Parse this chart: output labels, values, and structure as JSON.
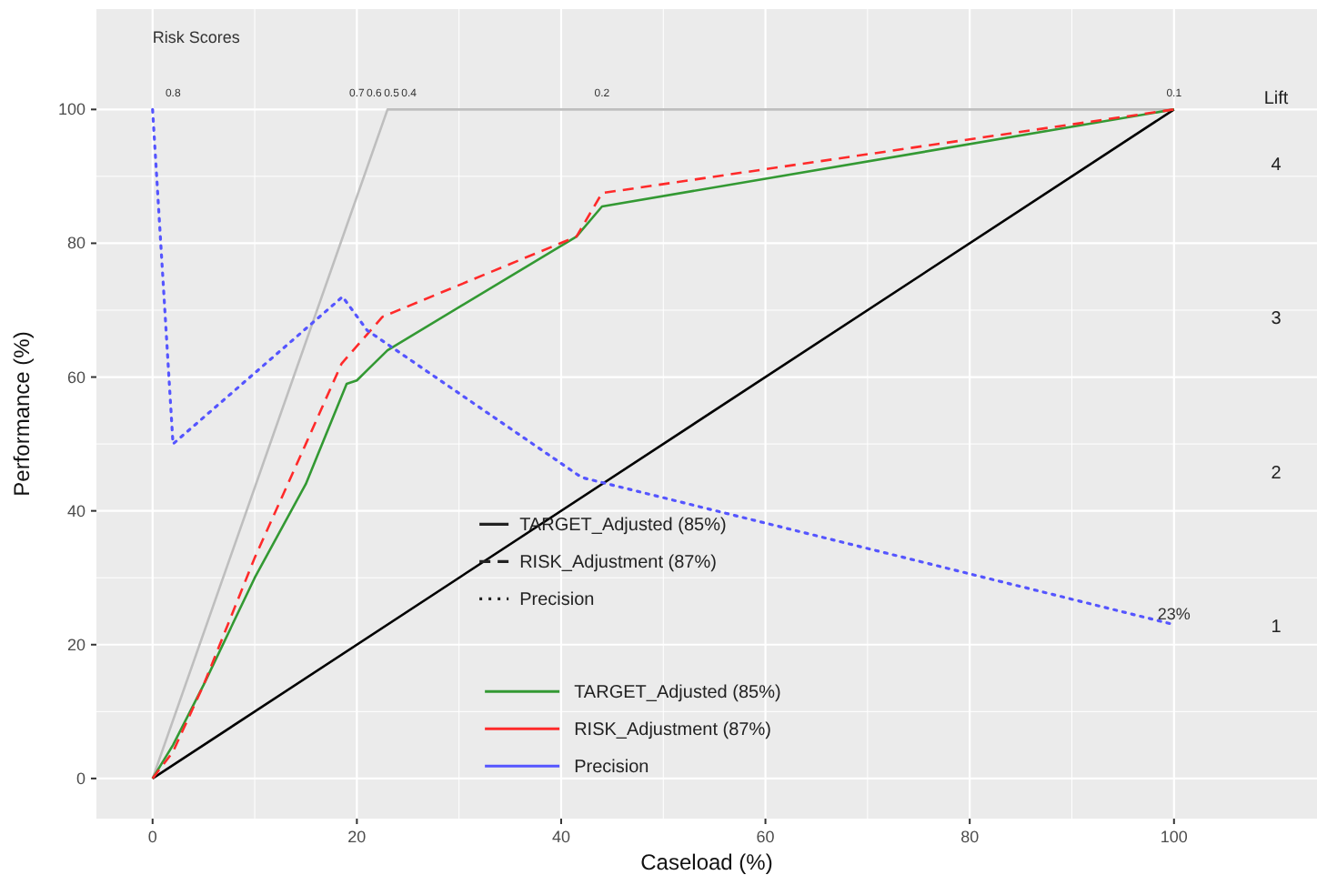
{
  "chart_data": {
    "type": "line",
    "xlabel": "Caseload (%)",
    "ylabel": "Performance (%)",
    "y2label": "Lift",
    "xlim": [
      -5.5,
      114
    ],
    "xticks": [
      0,
      20,
      40,
      60,
      80,
      100
    ],
    "ylim": [
      -6,
      115
    ],
    "yticks": [
      0,
      20,
      40,
      60,
      80,
      100
    ],
    "y2lim": [
      -0.26,
      5
    ],
    "y2ticks": [
      1,
      2,
      3,
      4
    ],
    "grid": true,
    "legend": "bottom",
    "series": [
      {
        "color": "#bebebe",
        "line_style": "solid",
        "x": [
          0,
          23,
          100
        ],
        "values": [
          0,
          100,
          100
        ]
      },
      {
        "color": "#000000",
        "line_style": "solid",
        "x": [
          0,
          100
        ],
        "values": [
          0,
          100
        ]
      },
      {
        "name": "TARGET_Adjusted (85%)",
        "color": "#339933",
        "line_style": "solid",
        "x": [
          0,
          2,
          5,
          10,
          15,
          19,
          20,
          21,
          23,
          41.5,
          44,
          100
        ],
        "values": [
          0,
          5,
          14,
          30,
          44,
          59,
          59.5,
          61,
          64,
          81,
          85.5,
          100
        ]
      },
      {
        "name": "RISK_Adjustment (87%)",
        "color": "#ff2a2a",
        "line_style": "dashed",
        "x": [
          0,
          2,
          5,
          10,
          15,
          18.5,
          22.5,
          41.5,
          44,
          100
        ],
        "values": [
          0,
          4,
          14,
          33,
          50,
          62,
          69,
          81,
          87.5,
          100
        ]
      },
      {
        "name": "Precision",
        "color": "#5555ff",
        "line_style": "dotted",
        "x": [
          0,
          2,
          18.6,
          21,
          42,
          100
        ],
        "values": [
          100,
          50,
          72,
          67,
          45,
          23
        ]
      }
    ],
    "annotations": [
      "Risk Scores",
      "0.8",
      "0.7",
      "0.6",
      "0.5",
      "0.4",
      "0.2",
      "0.1",
      {
        "text": "23%",
        "x": 100,
        "y": 23
      }
    ]
  }
}
